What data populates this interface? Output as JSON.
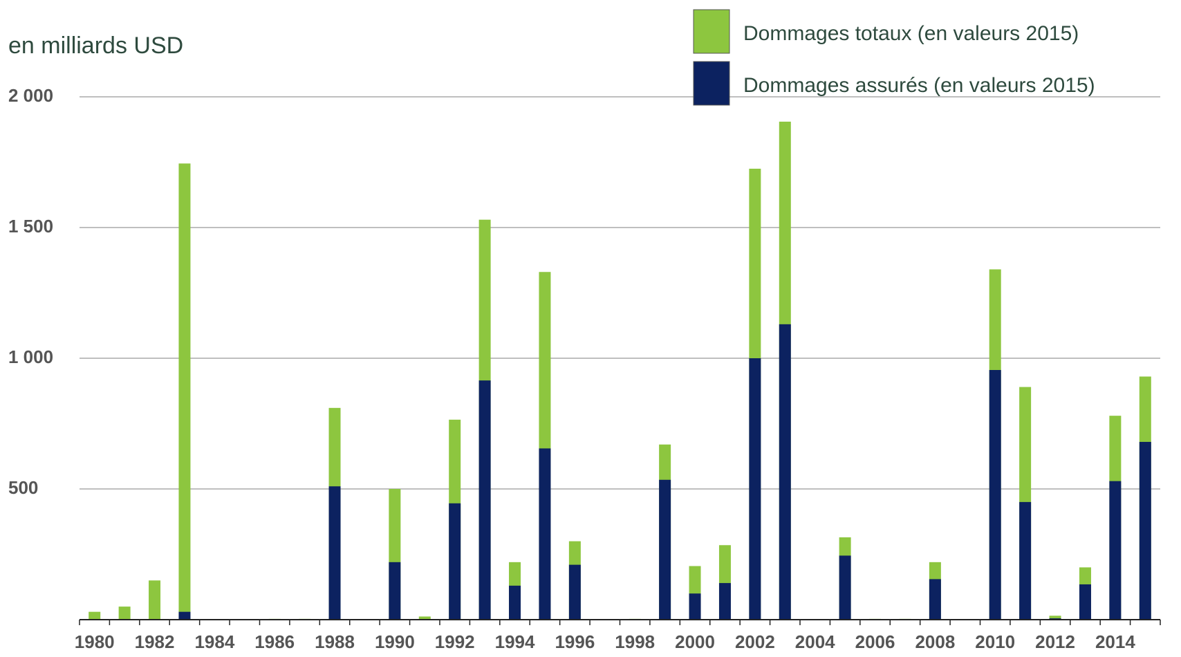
{
  "chart_data": {
    "type": "bar",
    "y_label": "en milliards USD",
    "categories": [
      "1980",
      null,
      "1982",
      null,
      "1984",
      null,
      "1986",
      null,
      "1988",
      null,
      "1990",
      null,
      "1992",
      null,
      "1994",
      null,
      "1996",
      null,
      "1998",
      null,
      "2000",
      null,
      "2002",
      null,
      "2004",
      null,
      "2006",
      null,
      "2008",
      null,
      "2010",
      null,
      "2012",
      null,
      "2014",
      null
    ],
    "series": [
      {
        "name": "Dommages totaux (en valeurs 2015)",
        "color": "#8dc63f",
        "values": [
          30,
          50,
          150,
          1745,
          0,
          0,
          3,
          3,
          810,
          0,
          500,
          12,
          765,
          1530,
          220,
          1330,
          300,
          0,
          3,
          670,
          205,
          285,
          1725,
          1905,
          0,
          315,
          3,
          3,
          220,
          0,
          1340,
          890,
          15,
          200,
          780,
          930
        ]
      },
      {
        "name": "Dommages assurés (en valeurs 2015)",
        "color": "#0c2260",
        "values": [
          0,
          0,
          0,
          30,
          0,
          0,
          0,
          0,
          510,
          0,
          220,
          0,
          445,
          915,
          130,
          655,
          210,
          0,
          0,
          535,
          100,
          140,
          1000,
          1130,
          0,
          245,
          0,
          0,
          155,
          0,
          955,
          450,
          5,
          135,
          530,
          680
        ]
      }
    ],
    "ylim": [
      0,
      2000
    ],
    "yticks": [
      500,
      {
        "value": 1000,
        "label": "1 000"
      },
      {
        "value": 1500,
        "label": "1 500"
      },
      {
        "value": 2000,
        "label": "2 000"
      }
    ],
    "grid": true
  }
}
